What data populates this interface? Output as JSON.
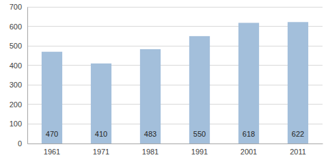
{
  "chart_data": {
    "type": "bar",
    "categories": [
      "1961",
      "1971",
      "1981",
      "1991",
      "2001",
      "2011"
    ],
    "values": [
      470,
      410,
      483,
      550,
      618,
      622
    ],
    "color": "#a3bfdb",
    "ylim": [
      0,
      700
    ],
    "yticks": [
      0,
      100,
      200,
      300,
      400,
      500,
      600,
      700
    ],
    "grid": true,
    "data_labels": true
  }
}
